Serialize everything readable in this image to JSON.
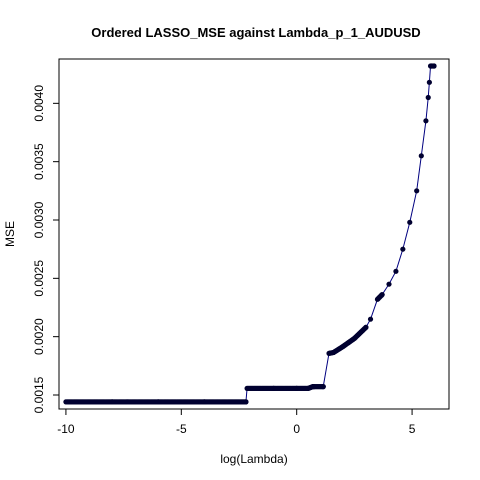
{
  "chart_data": {
    "type": "line",
    "title": "Ordered LASSO_MSE against Lambda_p_1_AUDUSD",
    "xlabel": "log(Lambda)",
    "ylabel": "MSE",
    "xlim": [
      -10.3,
      6.6
    ],
    "ylim": [
      0.00138,
      0.00438
    ],
    "x_ticks": [
      -10,
      -5,
      0,
      5
    ],
    "x_tick_labels": [
      "-10",
      "-5",
      "0",
      "5"
    ],
    "y_ticks": [
      0.0015,
      0.002,
      0.0025,
      0.003,
      0.0035,
      0.004
    ],
    "y_tick_labels": [
      "0.0015",
      "0.0020",
      "0.0025",
      "0.0030",
      "0.0035",
      "0.0040"
    ],
    "grid": false,
    "line_color": "#000080",
    "marker_color": "#000030",
    "series": [
      {
        "x": [
          -10.0,
          -8.0,
          -6.0,
          -4.0,
          -2.2,
          -2.15,
          -1.0,
          0.0,
          0.5,
          0.7,
          0.75,
          1.15,
          1.4,
          1.6,
          2.0,
          2.5,
          3.0,
          3.2,
          3.5,
          3.7,
          4.0,
          4.3,
          4.6,
          4.9,
          5.2,
          5.4,
          5.6,
          5.7,
          5.75,
          5.8,
          5.85,
          5.95
        ],
        "y": [
          0.001441,
          0.001441,
          0.001441,
          0.001441,
          0.001441,
          0.001557,
          0.001557,
          0.001557,
          0.001557,
          0.001572,
          0.001572,
          0.001572,
          0.001857,
          0.001865,
          0.001915,
          0.001985,
          0.00208,
          0.00215,
          0.00232,
          0.00236,
          0.00245,
          0.00256,
          0.00275,
          0.00298,
          0.00325,
          0.00355,
          0.00385,
          0.00405,
          0.00418,
          0.00432,
          0.00432,
          0.00432
        ]
      }
    ]
  }
}
